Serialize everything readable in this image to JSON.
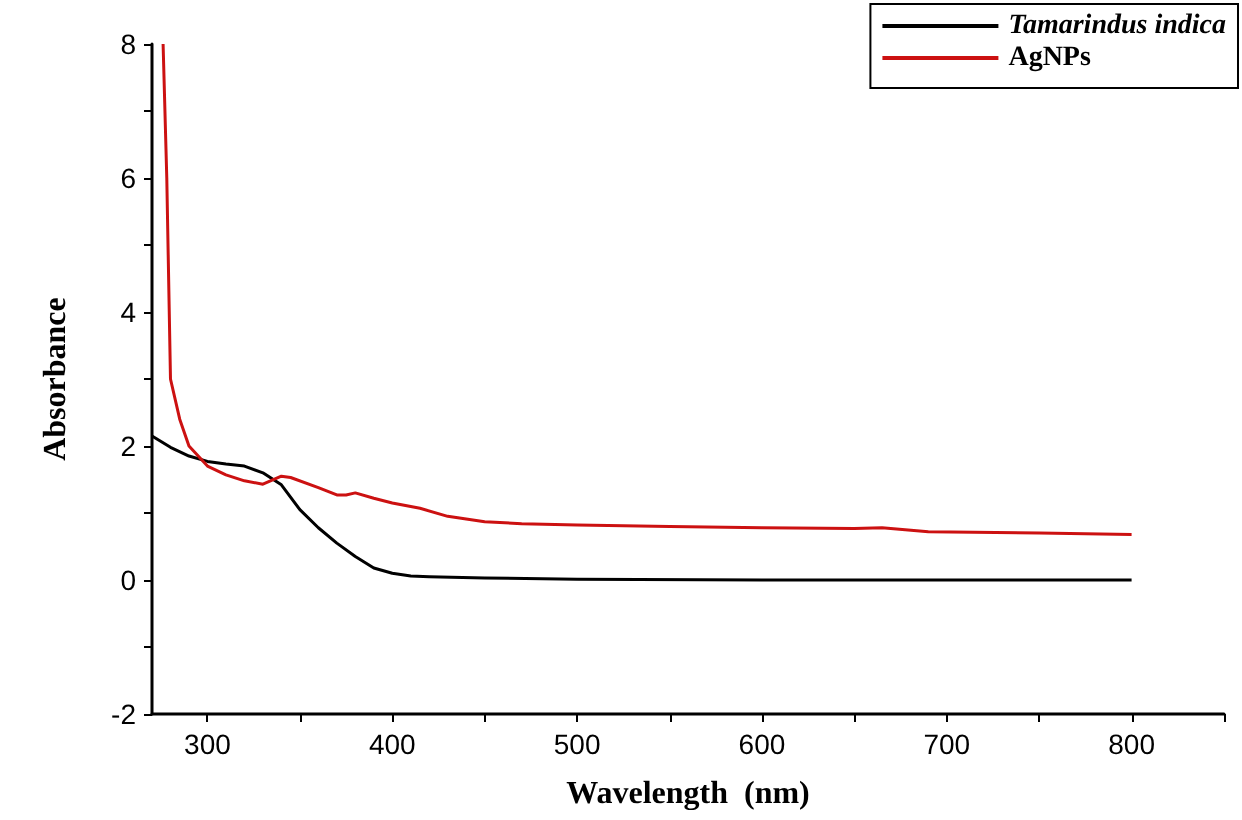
{
  "chart_data": {
    "type": "line",
    "xlabel": "Wavelength  (nm)",
    "ylabel": "Absorbance",
    "xlim": [
      270,
      850
    ],
    "xticks": [
      300,
      {
        "value": 350,
        "label": null
      },
      400,
      {
        "value": 450,
        "label": null
      },
      500,
      {
        "value": 550,
        "label": null
      },
      600,
      {
        "value": 650,
        "label": null
      },
      700,
      {
        "value": 750,
        "label": null
      },
      800,
      {
        "value": 850,
        "label": null
      }
    ],
    "ylim": [
      -2,
      8
    ],
    "yticks": [
      -2,
      {
        "value": -1,
        "label": null
      },
      0,
      {
        "value": 1,
        "label": null
      },
      2,
      {
        "value": 3,
        "label": null
      },
      4,
      {
        "value": 5,
        "label": null
      },
      6,
      {
        "value": 7,
        "label": null
      },
      8
    ],
    "grid": false,
    "legend": "top right",
    "marker": "none",
    "line_style": "solid",
    "series": [
      {
        "name": "Tamarindus indica",
        "color": "#000000",
        "x": [
          270,
          280,
          290,
          300,
          310,
          320,
          330,
          340,
          350,
          360,
          370,
          380,
          390,
          400,
          410,
          420,
          450,
          500,
          600,
          700,
          800
        ],
        "values": [
          2.15,
          1.98,
          1.85,
          1.77,
          1.73,
          1.7,
          1.6,
          1.42,
          1.05,
          0.78,
          0.55,
          0.35,
          0.18,
          0.1,
          0.06,
          0.05,
          0.03,
          0.01,
          0,
          0,
          0
        ]
      },
      {
        "name": "AgNPs",
        "color": "#cc1111",
        "x": [
          276,
          278,
          280,
          285,
          290,
          300,
          310,
          320,
          330,
          340,
          345,
          360,
          370,
          375,
          380,
          390,
          400,
          415,
          430,
          450,
          470,
          500,
          550,
          600,
          650,
          665,
          690,
          750,
          800
        ],
        "values": [
          8,
          6,
          3,
          2.4,
          2.0,
          1.7,
          1.57,
          1.48,
          1.43,
          1.55,
          1.53,
          1.38,
          1.27,
          1.27,
          1.3,
          1.22,
          1.15,
          1.07,
          0.95,
          0.87,
          0.84,
          0.82,
          0.8,
          0.78,
          0.77,
          0.78,
          0.72,
          0.7,
          0.68
        ]
      }
    ]
  }
}
